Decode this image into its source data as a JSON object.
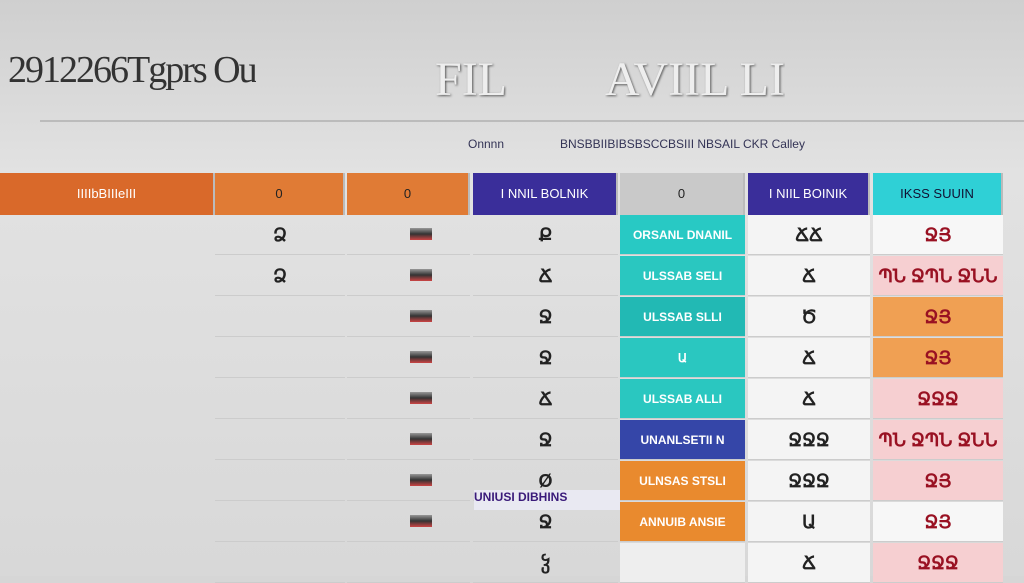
{
  "header": {
    "title": "2912266Tgprs Ou",
    "tags": [
      "FIL",
      "AVIIL LI"
    ],
    "subtitle": [
      "Onnnn",
      "BNSBBIIBIBSBSCCBSIII NBSAIL CKR Calley"
    ]
  },
  "table": {
    "headers": [
      "IIIIbBIIIeIII",
      "0",
      "0",
      "I NNIL BOLNIK",
      "0",
      "I NIIL BOINIK",
      "IKSS SUUIN"
    ],
    "rows": [
      [
        "Ձ",
        "",
        "Ք",
        "ORSANL DNANIL",
        "ՃՃ",
        "ՋՅ"
      ],
      [
        "Ձ",
        "",
        "Ճ",
        "ULSSAB SELI",
        "Ճ",
        "ՊՆ ՋՊՆ ՋՆՆ"
      ],
      [
        "",
        "",
        "Ջ",
        "ULSSAB SLLI",
        "Ծ",
        "ՋՅ"
      ],
      [
        "",
        "",
        "Ջ",
        "Ա",
        "Ճ",
        "ՋՅ"
      ],
      [
        "",
        "",
        "Ճ",
        "ULSSAB ALLI",
        "Ճ",
        "ՋՋՋ"
      ],
      [
        "",
        "",
        "Ջ",
        "UNANLSETII N",
        "ՋՋՋ",
        "ՊՆ ՋՊՆ ՋՆՆ"
      ],
      [
        "",
        "",
        "Ø",
        "ULNSAS STSLI",
        "ՋՋՋ",
        "ՋՅ"
      ],
      [
        "",
        "",
        "Ջ",
        "ANNUIB ANSIE",
        "Ա",
        "ՋՅ"
      ],
      [
        "",
        "",
        "ჴ",
        "",
        "Ճ",
        "ՋՋՋ"
      ]
    ],
    "banner": "UNIUSI DIBHINS"
  }
}
